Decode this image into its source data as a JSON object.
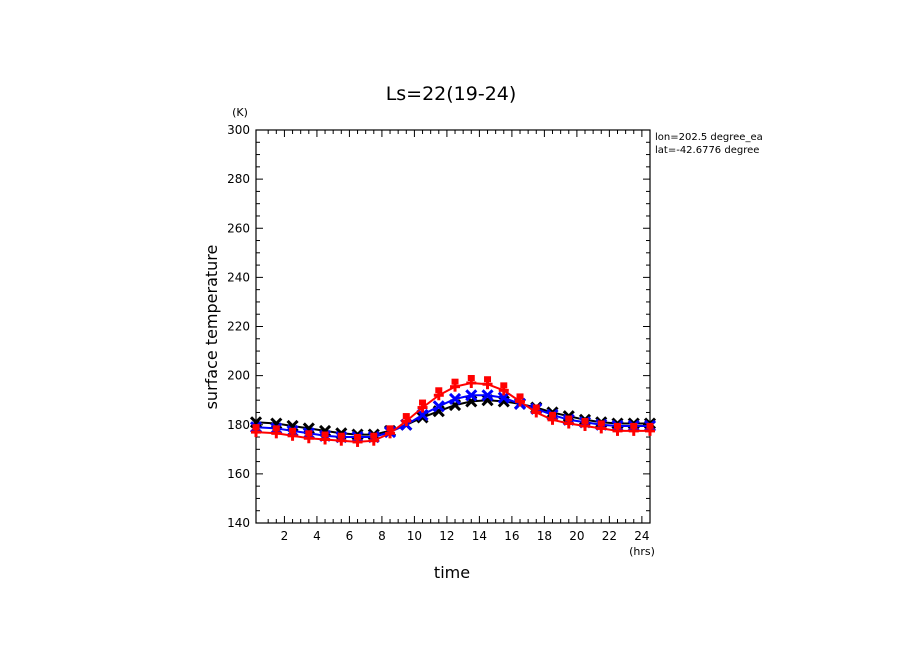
{
  "chart_data": {
    "type": "line",
    "title": "Ls=22(19-24)",
    "xlabel": "time",
    "ylabel": "surface temperature",
    "x_unit": "(hrs)",
    "y_unit": "(K)",
    "xlim": [
      0.25,
      24.5
    ],
    "ylim": [
      140,
      300
    ],
    "x_ticks": [
      2,
      4,
      6,
      8,
      10,
      12,
      14,
      16,
      18,
      20,
      22,
      24
    ],
    "y_ticks": [
      140,
      160,
      180,
      200,
      220,
      240,
      260,
      280,
      300
    ],
    "annotations": [
      "lon=202.5 degree_ea",
      "lat=-42.6776 degree"
    ],
    "grid": false,
    "series": [
      {
        "color": "#000000",
        "marker": "x",
        "x": [
          0.25,
          1.5,
          2.5,
          3.5,
          4.5,
          5.5,
          6.5,
          7.5,
          8.5,
          9.5,
          10.5,
          11.5,
          12.5,
          13.5,
          14.5,
          15.5,
          16.5,
          17.5,
          18.5,
          19.5,
          20.5,
          21.5,
          22.5,
          23.5,
          24.5
        ],
        "values": [
          181,
          180.5,
          179.5,
          178.5,
          177.5,
          176.5,
          176,
          176,
          177.5,
          180,
          183,
          185.5,
          188,
          189.5,
          190,
          189.5,
          188.5,
          187,
          185,
          183.5,
          182,
          181,
          180.5,
          180.5,
          180.5
        ]
      },
      {
        "color": "#0000ff",
        "marker": "x",
        "x": [
          0.25,
          1.5,
          2.5,
          3.5,
          4.5,
          5.5,
          6.5,
          7.5,
          8.5,
          9.5,
          10.5,
          11.5,
          12.5,
          13.5,
          14.5,
          15.5,
          16.5,
          17.5,
          18.5,
          19.5,
          20.5,
          21.5,
          22.5,
          23.5,
          24.5
        ],
        "values": [
          179,
          178.5,
          177.5,
          176.5,
          175.5,
          175,
          175,
          175,
          177,
          180,
          184,
          187.5,
          190.5,
          192,
          192,
          191,
          188.5,
          186.5,
          184,
          182,
          181,
          180,
          179.5,
          179.5,
          179.5
        ]
      },
      {
        "color": "#ff0000",
        "marker": "+",
        "x": [
          0.25,
          1.5,
          2.5,
          3.5,
          4.5,
          5.5,
          6.5,
          7.5,
          8.5,
          9.5,
          10.5,
          11.5,
          12.5,
          13.5,
          14.5,
          15.5,
          16.5,
          17.5,
          18.5,
          19.5,
          20.5,
          21.5,
          22.5,
          23.5,
          24.5
        ],
        "values": [
          177,
          176.5,
          175.5,
          174.5,
          174,
          173.5,
          173,
          173.5,
          176.5,
          181.5,
          187,
          192,
          195.5,
          197,
          196.5,
          194,
          189.5,
          185,
          182,
          180.5,
          179.5,
          178.5,
          177.5,
          177.5,
          177.5
        ]
      }
    ]
  }
}
